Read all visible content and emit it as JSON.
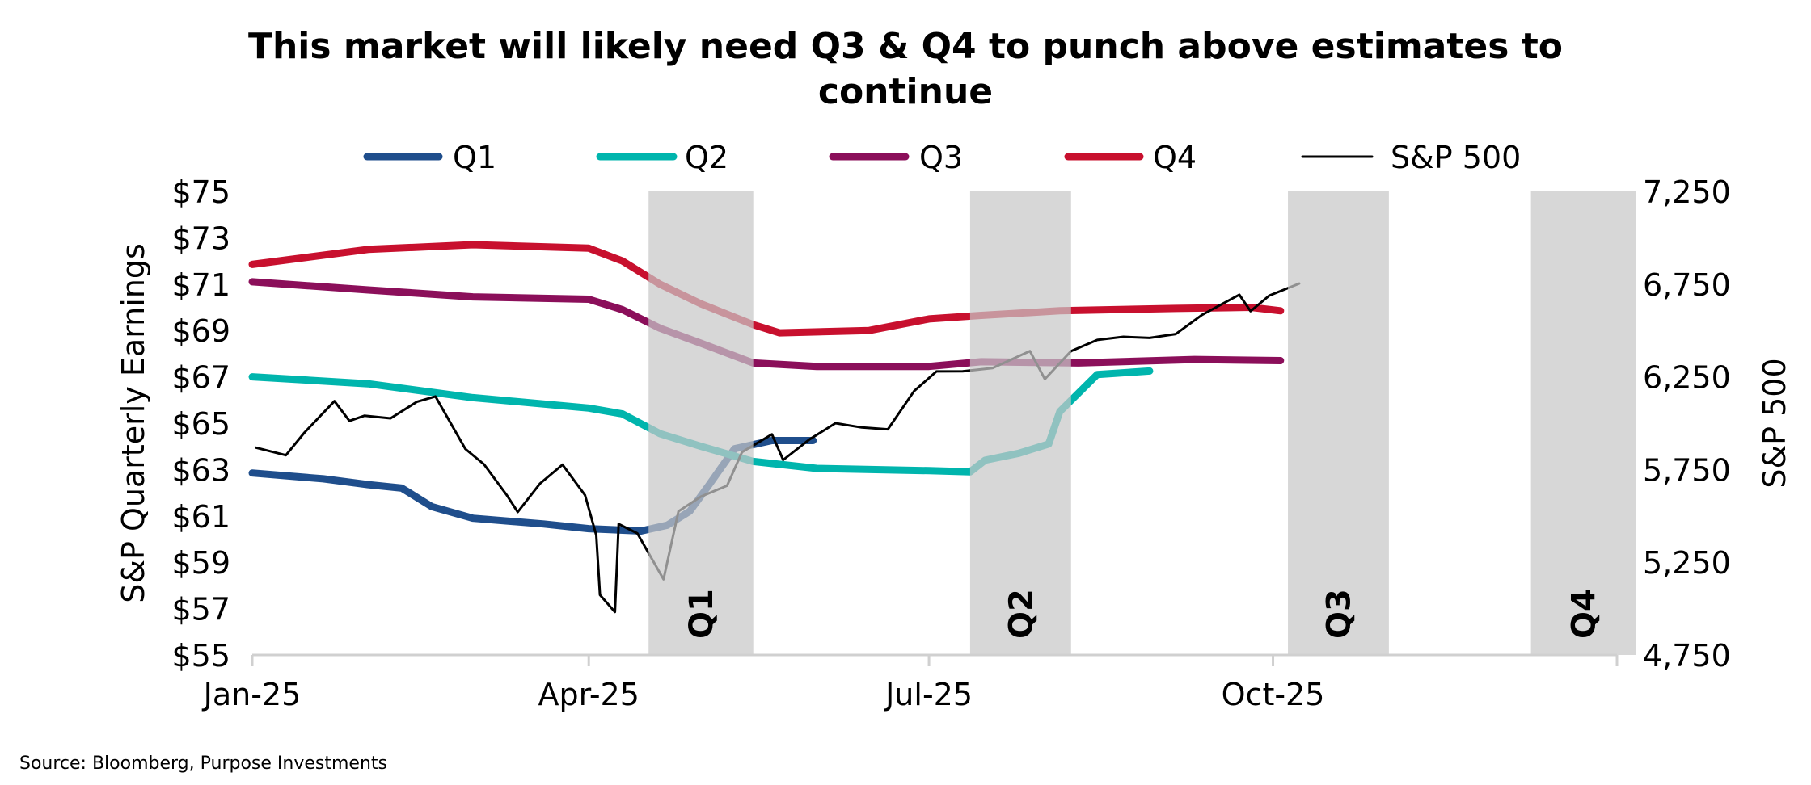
{
  "chart_data": {
    "type": "line",
    "title_lines": [
      "This market will likely need Q3 & Q4 to punch above estimates to",
      "continue"
    ],
    "xlim": [
      "2025-01-01",
      "2026-01-01"
    ],
    "x_ticks": [
      {
        "date": "2025-01-01",
        "label": "Jan-25"
      },
      {
        "date": "2025-04-01",
        "label": "Apr-25"
      },
      {
        "date": "2025-07-01",
        "label": "Jul-25"
      },
      {
        "date": "2025-10-01",
        "label": "Oct-25"
      }
    ],
    "y_left": {
      "label": "S&P Quarterly Earnings",
      "lim": [
        55,
        75
      ],
      "ticks": [
        55,
        57,
        59,
        61,
        63,
        65,
        67,
        69,
        71,
        73,
        75
      ],
      "prefix": "$"
    },
    "y_right": {
      "label": "S&P 500",
      "lim": [
        4750,
        7250
      ],
      "ticks": [
        4750,
        5250,
        5750,
        6250,
        6750,
        7250
      ]
    },
    "grid": false,
    "legend_placement": "top",
    "shaded_periods": [
      {
        "label": "Q1",
        "start": "2025-04-17",
        "end": "2025-05-15"
      },
      {
        "label": "Q2",
        "start": "2025-07-12",
        "end": "2025-08-08"
      },
      {
        "label": "Q3",
        "start": "2025-10-05",
        "end": "2025-11-01"
      },
      {
        "label": "Q4",
        "start": "2025-12-09",
        "end": "2026-01-06"
      }
    ],
    "shade_color": "#c8c8c8",
    "series": [
      {
        "name": "Q1",
        "axis": "left",
        "color": "#1f4e8c",
        "points": [
          [
            "2025-01-01",
            62.85
          ],
          [
            "2025-01-20",
            62.6
          ],
          [
            "2025-02-01",
            62.35
          ],
          [
            "2025-02-10",
            62.2
          ],
          [
            "2025-02-18",
            61.4
          ],
          [
            "2025-03-01",
            60.9
          ],
          [
            "2025-03-20",
            60.65
          ],
          [
            "2025-04-01",
            60.45
          ],
          [
            "2025-04-15",
            60.35
          ],
          [
            "2025-04-22",
            60.6
          ],
          [
            "2025-04-28",
            61.2
          ],
          [
            "2025-05-03",
            62.3
          ],
          [
            "2025-05-10",
            63.9
          ],
          [
            "2025-05-20",
            64.25
          ],
          [
            "2025-05-31",
            64.25
          ]
        ]
      },
      {
        "name": "Q2",
        "axis": "left",
        "color": "#00b5ad",
        "points": [
          [
            "2025-01-01",
            67.0
          ],
          [
            "2025-02-01",
            66.7
          ],
          [
            "2025-03-01",
            66.1
          ],
          [
            "2025-04-01",
            65.65
          ],
          [
            "2025-04-10",
            65.4
          ],
          [
            "2025-04-20",
            64.55
          ],
          [
            "2025-05-01",
            64.0
          ],
          [
            "2025-05-15",
            63.35
          ],
          [
            "2025-06-01",
            63.05
          ],
          [
            "2025-07-01",
            62.95
          ],
          [
            "2025-07-12",
            62.9
          ],
          [
            "2025-07-16",
            63.4
          ],
          [
            "2025-07-25",
            63.7
          ],
          [
            "2025-08-02",
            64.1
          ],
          [
            "2025-08-05",
            65.5
          ],
          [
            "2025-08-10",
            66.3
          ],
          [
            "2025-08-15",
            67.1
          ],
          [
            "2025-08-29",
            67.25
          ]
        ]
      },
      {
        "name": "Q3",
        "axis": "left",
        "color": "#8b0f5a",
        "points": [
          [
            "2025-01-01",
            71.1
          ],
          [
            "2025-02-01",
            70.75
          ],
          [
            "2025-03-01",
            70.45
          ],
          [
            "2025-04-01",
            70.35
          ],
          [
            "2025-04-10",
            69.9
          ],
          [
            "2025-04-20",
            69.1
          ],
          [
            "2025-05-01",
            68.45
          ],
          [
            "2025-05-15",
            67.6
          ],
          [
            "2025-06-01",
            67.45
          ],
          [
            "2025-07-01",
            67.45
          ],
          [
            "2025-07-15",
            67.65
          ],
          [
            "2025-08-10",
            67.6
          ],
          [
            "2025-09-10",
            67.75
          ],
          [
            "2025-10-03",
            67.7
          ]
        ]
      },
      {
        "name": "Q4",
        "axis": "left",
        "color": "#c8102e",
        "points": [
          [
            "2025-01-01",
            71.85
          ],
          [
            "2025-02-01",
            72.5
          ],
          [
            "2025-03-01",
            72.7
          ],
          [
            "2025-04-01",
            72.55
          ],
          [
            "2025-04-10",
            72.0
          ],
          [
            "2025-04-20",
            71.0
          ],
          [
            "2025-05-01",
            70.15
          ],
          [
            "2025-05-15",
            69.25
          ],
          [
            "2025-05-22",
            68.9
          ],
          [
            "2025-06-15",
            69.0
          ],
          [
            "2025-07-01",
            69.5
          ],
          [
            "2025-07-15",
            69.65
          ],
          [
            "2025-08-05",
            69.85
          ],
          [
            "2025-09-05",
            69.95
          ],
          [
            "2025-09-25",
            70.0
          ],
          [
            "2025-10-03",
            69.85
          ]
        ]
      },
      {
        "name": "S&P 500",
        "axis": "right",
        "color": "#000000",
        "points": [
          [
            "2025-01-02",
            5868
          ],
          [
            "2025-01-10",
            5827
          ],
          [
            "2025-01-15",
            5950
          ],
          [
            "2025-01-23",
            6119
          ],
          [
            "2025-01-27",
            6012
          ],
          [
            "2025-01-31",
            6040
          ],
          [
            "2025-02-07",
            6026
          ],
          [
            "2025-02-14",
            6115
          ],
          [
            "2025-02-19",
            6144
          ],
          [
            "2025-02-27",
            5861
          ],
          [
            "2025-03-04",
            5778
          ],
          [
            "2025-03-10",
            5614
          ],
          [
            "2025-03-13",
            5521
          ],
          [
            "2025-03-19",
            5675
          ],
          [
            "2025-03-25",
            5776
          ],
          [
            "2025-03-31",
            5612
          ],
          [
            "2025-04-03",
            5396
          ],
          [
            "2025-04-04",
            5074
          ],
          [
            "2025-04-08",
            4982
          ],
          [
            "2025-04-09",
            5456
          ],
          [
            "2025-04-14",
            5406
          ],
          [
            "2025-04-21",
            5158
          ],
          [
            "2025-04-25",
            5525
          ],
          [
            "2025-05-01",
            5604
          ],
          [
            "2025-05-08",
            5663
          ],
          [
            "2025-05-12",
            5844
          ],
          [
            "2025-05-20",
            5940
          ],
          [
            "2025-05-23",
            5802
          ],
          [
            "2025-05-30",
            5912
          ],
          [
            "2025-06-06",
            6000
          ],
          [
            "2025-06-13",
            5977
          ],
          [
            "2025-06-20",
            5967
          ],
          [
            "2025-06-27",
            6173
          ],
          [
            "2025-07-03",
            6279
          ],
          [
            "2025-07-10",
            6280
          ],
          [
            "2025-07-18",
            6297
          ],
          [
            "2025-07-28",
            6389
          ],
          [
            "2025-08-01",
            6238
          ],
          [
            "2025-08-08",
            6389
          ],
          [
            "2025-08-15",
            6449
          ],
          [
            "2025-08-22",
            6466
          ],
          [
            "2025-08-29",
            6460
          ],
          [
            "2025-09-05",
            6481
          ],
          [
            "2025-09-12",
            6584
          ],
          [
            "2025-09-22",
            6693
          ],
          [
            "2025-09-25",
            6604
          ],
          [
            "2025-09-30",
            6688
          ],
          [
            "2025-10-08",
            6753
          ]
        ]
      }
    ]
  },
  "source": "Source: Bloomberg, Purpose Investments"
}
